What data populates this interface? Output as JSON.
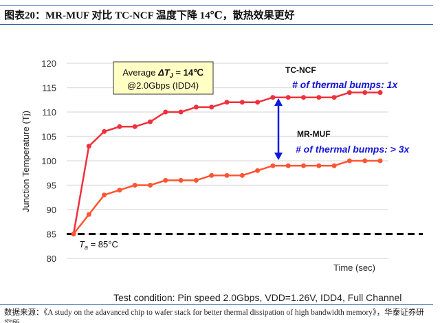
{
  "title": "图表20：MR-MUF 对比 TC-NCF 温度下降 14℃，散热效果更好",
  "source": "数据来源：《A study on the adavanced chip to wafer stack for better thermal dissipation of high bandwidth memory》，华泰证券研究所",
  "chart_data": {
    "type": "line",
    "title": "",
    "ylabel": "Junction Temperature (Tj)",
    "xlabel": "Time (sec)",
    "ylim": [
      80,
      120
    ],
    "yticks": [
      "80",
      "85",
      "90",
      "95",
      "100",
      "105",
      "110",
      "115",
      "120"
    ],
    "grid": true,
    "x": [
      0,
      1,
      2,
      3,
      4,
      5,
      6,
      7,
      8,
      9,
      10,
      11,
      12,
      13,
      14,
      15,
      16,
      17,
      18,
      19,
      20
    ],
    "series": [
      {
        "name": "TC-NCF",
        "color": "#f0303c",
        "values": [
          85,
          103,
          106,
          107,
          107,
          108,
          110,
          110,
          111,
          111,
          112,
          112,
          112,
          113,
          113,
          113,
          113,
          113,
          114,
          114,
          114
        ]
      },
      {
        "name": "MR-MUF",
        "color": "#ff5533",
        "values": [
          85,
          89,
          93,
          94,
          95,
          95,
          96,
          96,
          96,
          97,
          97,
          97,
          98,
          99,
          99,
          99,
          99,
          99,
          100,
          100,
          100
        ]
      }
    ],
    "baseline": {
      "value": 85,
      "label_T": "T",
      "label_sub": "a",
      "label_rest": " = 85°C"
    },
    "annotation_box": {
      "line1_prefix": "Average ",
      "line1_delta": "ΔT",
      "line1_sub": "J",
      "line1_value": " = 14℃",
      "line2": "@2.0Gbps (IDD4)"
    },
    "labels": {
      "tc_ncf": "TC-NCF",
      "tc_ncf_bumps": "# of thermal bumps: 1x",
      "mr_muf": "MR-MUF",
      "mr_muf_bumps": "# of thermal bumps: > 3x"
    },
    "footnote": "Test condition: Pin speed 2.0Gbps, VDD=1.26V, IDD4, Full Channel"
  }
}
